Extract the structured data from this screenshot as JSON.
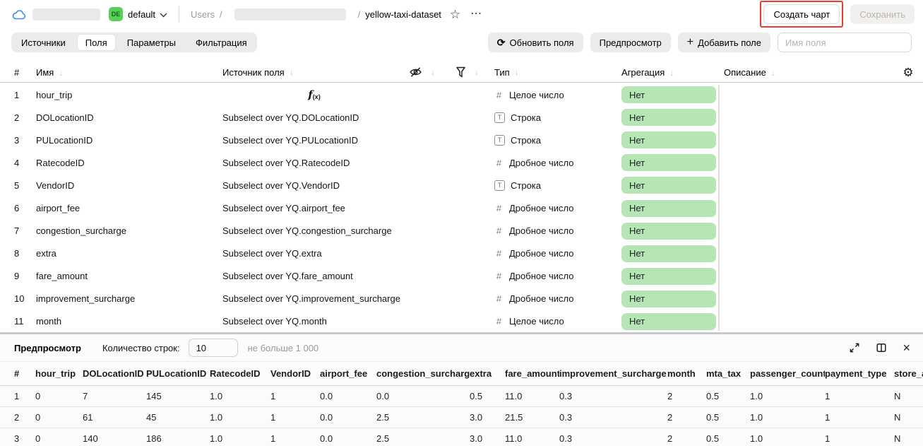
{
  "header": {
    "folder_badge": "DE",
    "folder_name": "default",
    "breadcrumb_root": "Users",
    "breadcrumb_sep": "/",
    "dataset_name": "yellow-taxi-dataset",
    "create_chart": "Создать чарт",
    "save": "Сохранить"
  },
  "tabs": {
    "sources": "Источники",
    "fields": "Поля",
    "parameters": "Параметры",
    "filtering": "Фильтрация"
  },
  "toolbar": {
    "refresh": "Обновить поля",
    "preview": "Предпросмотр",
    "add_field": "Добавить поле",
    "field_name_placeholder": "Имя поля"
  },
  "fields_table": {
    "col_num": "#",
    "col_name": "Имя",
    "col_source": "Источник поля",
    "col_type": "Тип",
    "col_agg": "Агрегация",
    "col_desc": "Описание",
    "rows": [
      {
        "num": "1",
        "name": "hour_trip",
        "source": "",
        "formula": true,
        "type_kind": "int",
        "type": "Целое число",
        "agg": "Нет"
      },
      {
        "num": "2",
        "name": "DOLocationID",
        "source": "Subselect over YQ.DOLocationID",
        "formula": false,
        "type_kind": "string",
        "type": "Строка",
        "agg": "Нет"
      },
      {
        "num": "3",
        "name": "PULocationID",
        "source": "Subselect over YQ.PULocationID",
        "formula": false,
        "type_kind": "string",
        "type": "Строка",
        "agg": "Нет"
      },
      {
        "num": "4",
        "name": "RatecodeID",
        "source": "Subselect over YQ.RatecodeID",
        "formula": false,
        "type_kind": "float",
        "type": "Дробное число",
        "agg": "Нет"
      },
      {
        "num": "5",
        "name": "VendorID",
        "source": "Subselect over YQ.VendorID",
        "formula": false,
        "type_kind": "string",
        "type": "Строка",
        "agg": "Нет"
      },
      {
        "num": "6",
        "name": "airport_fee",
        "source": "Subselect over YQ.airport_fee",
        "formula": false,
        "type_kind": "float",
        "type": "Дробное число",
        "agg": "Нет"
      },
      {
        "num": "7",
        "name": "congestion_surcharge",
        "source": "Subselect over YQ.congestion_surcharge",
        "formula": false,
        "type_kind": "float",
        "type": "Дробное число",
        "agg": "Нет"
      },
      {
        "num": "8",
        "name": "extra",
        "source": "Subselect over YQ.extra",
        "formula": false,
        "type_kind": "float",
        "type": "Дробное число",
        "agg": "Нет"
      },
      {
        "num": "9",
        "name": "fare_amount",
        "source": "Subselect over YQ.fare_amount",
        "formula": false,
        "type_kind": "float",
        "type": "Дробное число",
        "agg": "Нет"
      },
      {
        "num": "10",
        "name": "improvement_surcharge",
        "source": "Subselect over YQ.improvement_surcharge",
        "formula": false,
        "type_kind": "float",
        "type": "Дробное число",
        "agg": "Нет"
      },
      {
        "num": "11",
        "name": "month",
        "source": "Subselect over YQ.month",
        "formula": false,
        "type_kind": "int",
        "type": "Целое число",
        "agg": "Нет"
      }
    ]
  },
  "preview": {
    "title": "Предпросмотр",
    "row_count_label": "Количество строк:",
    "row_count_value": "10",
    "row_count_hint": "не больше 1 000",
    "table": {
      "headers": [
        "#",
        "hour_trip",
        "DOLocationID",
        "PULocationID",
        "RatecodeID",
        "VendorID",
        "airport_fee",
        "congestion_surcharge",
        "extra",
        "fare_amount",
        "improvement_surcharge",
        "month",
        "mta_tax",
        "passenger_count",
        "payment_type",
        "store_an"
      ],
      "rows": [
        [
          "1",
          "0",
          "7",
          "145",
          "1.0",
          "1",
          "0.0",
          "0.0",
          "0.5",
          "11.0",
          "0.3",
          "2",
          "0.5",
          "1.0",
          "1",
          "N"
        ],
        [
          "2",
          "0",
          "61",
          "45",
          "1.0",
          "1",
          "0.0",
          "2.5",
          "3.0",
          "21.5",
          "0.3",
          "2",
          "0.5",
          "1.0",
          "1",
          "N"
        ],
        [
          "3",
          "0",
          "140",
          "186",
          "1.0",
          "1",
          "0.0",
          "2.5",
          "3.0",
          "11.0",
          "0.3",
          "2",
          "0.5",
          "1.0",
          "1",
          "N"
        ]
      ]
    }
  },
  "icons": {
    "sort_arrow": "↓",
    "dots": "⋯",
    "star": "☆",
    "gear": "⚙",
    "refresh": "⟳",
    "plus": "+",
    "close": "×",
    "hash": "#",
    "string_t": "T",
    "formula_f": "f",
    "formula_sub": "(x)"
  },
  "colors": {
    "annotation_red": "#f0392e",
    "aggregation_pill_green": "#b6e6b6",
    "folder_badge_green": "#55d155"
  }
}
